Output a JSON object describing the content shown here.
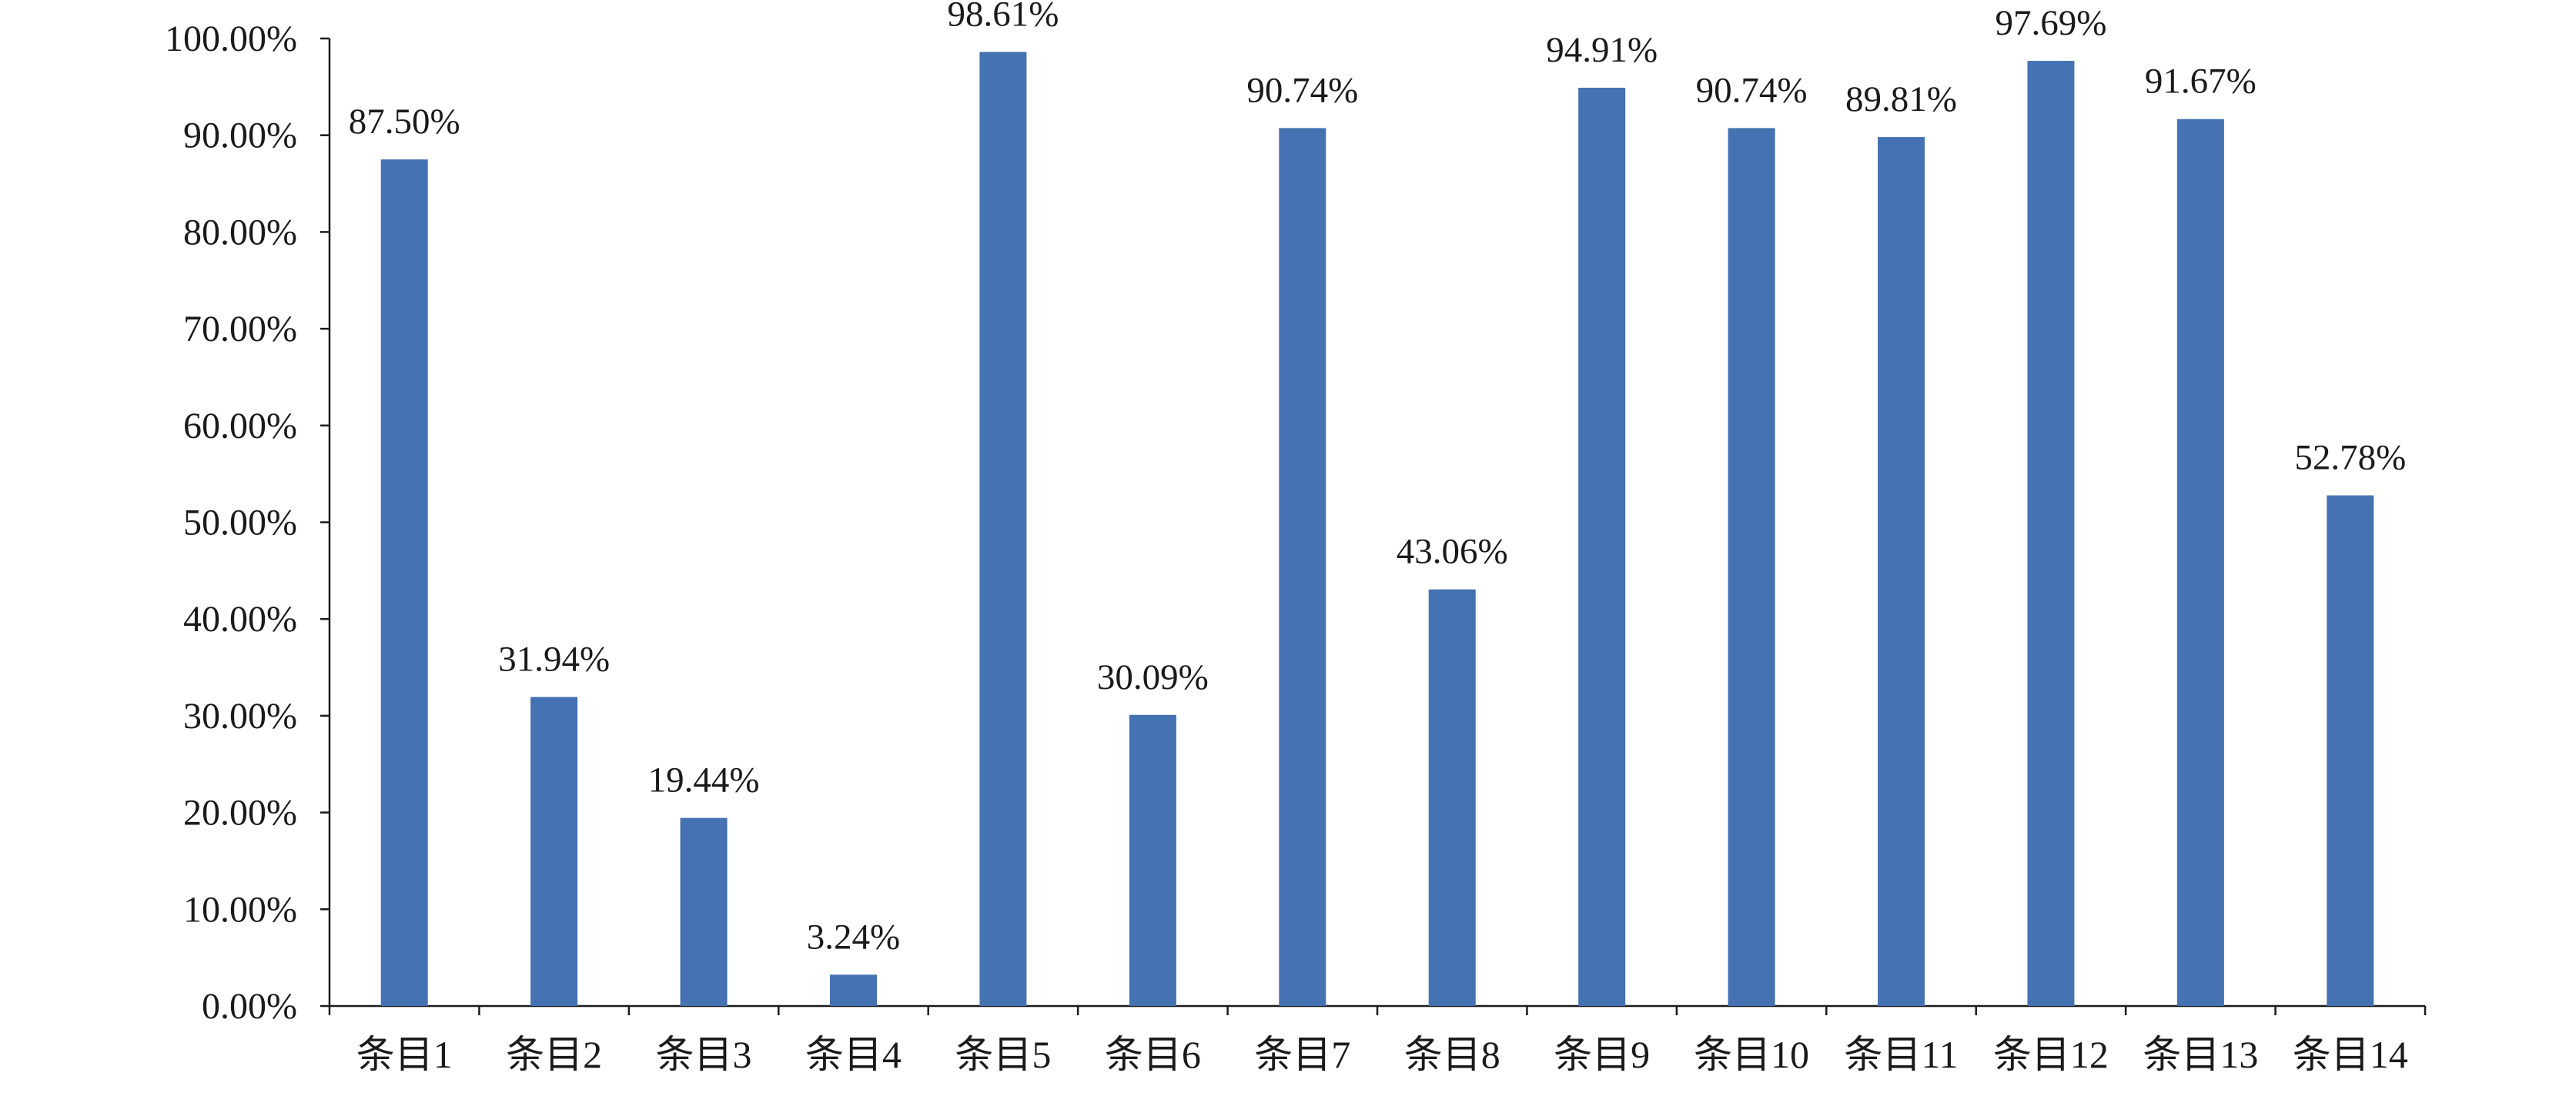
{
  "chart_data": {
    "type": "bar",
    "title": "",
    "xlabel": "",
    "ylabel": "",
    "categories": [
      "条目1",
      "条目2",
      "条目3",
      "条目4",
      "条目5",
      "条目6",
      "条目7",
      "条目8",
      "条目9",
      "条目10",
      "条目11",
      "条目12",
      "条目13",
      "条目14"
    ],
    "values": [
      87.5,
      31.94,
      19.44,
      3.24,
      98.61,
      30.09,
      90.74,
      43.06,
      94.91,
      90.74,
      89.81,
      97.69,
      91.67,
      52.78
    ],
    "data_labels": [
      "87.50%",
      "31.94%",
      "19.44%",
      "3.24%",
      "98.61%",
      "30.09%",
      "90.74%",
      "43.06%",
      "94.91%",
      "90.74%",
      "89.81%",
      "97.69%",
      "91.67%",
      "52.78%"
    ],
    "ylim": [
      0,
      100
    ],
    "yticks": [
      0,
      10,
      20,
      30,
      40,
      50,
      60,
      70,
      80,
      90,
      100
    ],
    "ytick_labels": [
      "0.00%",
      "10.00%",
      "20.00%",
      "30.00%",
      "40.00%",
      "50.00%",
      "60.00%",
      "70.00%",
      "80.00%",
      "90.00%",
      "100.00%"
    ],
    "grid": false,
    "legend": "none",
    "bar_color": "#4472b2",
    "axis_color": "#1a1a1a"
  }
}
